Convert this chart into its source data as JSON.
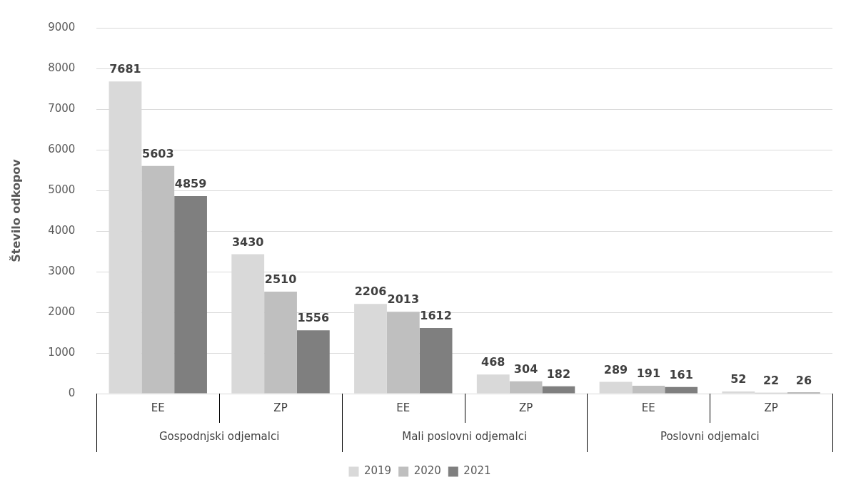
{
  "chart_data": {
    "type": "bar",
    "ylabel": "Število odkopov",
    "categories": [
      "EE",
      "ZP",
      "EE",
      "ZP",
      "EE",
      "ZP"
    ],
    "series": [
      {
        "name": "2019",
        "color": "#d9d9d9",
        "values": [
          7681,
          3430,
          2206,
          468,
          289,
          52
        ]
      },
      {
        "name": "2020",
        "color": "#bfbfbf",
        "values": [
          5603,
          2510,
          2013,
          304,
          191,
          22
        ]
      },
      {
        "name": "2021",
        "color": "#7f7f7f",
        "values": [
          4859,
          1556,
          1612,
          182,
          161,
          26
        ]
      }
    ],
    "annotations": [
      "Gospodnjski odjemalci",
      "Mali poslovni odjemalci",
      "Poslovni odjemalci"
    ],
    "ylim": [
      0,
      9000
    ],
    "yticks": [
      0,
      1000,
      2000,
      3000,
      4000,
      5000,
      6000,
      7000,
      8000,
      9000
    ],
    "grid": "y",
    "legend": "bottom",
    "data_labels": true
  }
}
